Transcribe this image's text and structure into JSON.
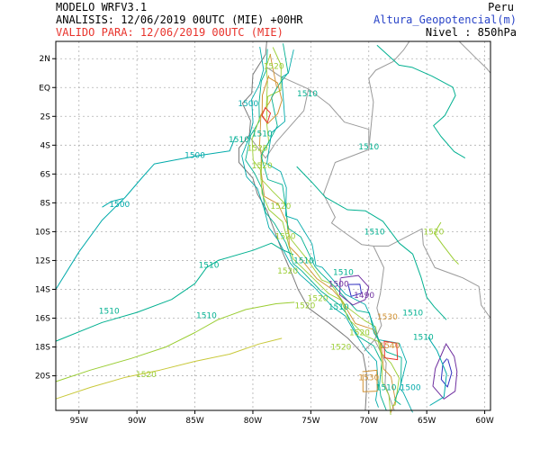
{
  "header": {
    "model": "MODELO WRFV3.1",
    "analysis": "ANALISIS: 12/06/2019 00UTC (MIE) +00HR",
    "valid": "VALIDO PARA: 12/06/2019 00UTC (MIE)",
    "region": "Peru",
    "variable": "Altura_Geopotencial(m)",
    "level": "Nivel : 850hPa"
  },
  "colors": {
    "text": "#000000",
    "valid_text": "#e8332c",
    "variable_text": "#2a44c8",
    "border": "#9a9a9a",
    "coast": "#7a7a7a",
    "grid": "#b0b0b0",
    "contour_1500": "#00aaaa",
    "contour_1510": "#00b090",
    "contour_1520": "#9acd32",
    "contour_high": "#d09030",
    "contour_purple": "#7030a0"
  },
  "axes": {
    "lon_labels": [
      "95W",
      "90W",
      "85W",
      "80W",
      "75W",
      "70W",
      "65W",
      "60W"
    ],
    "lat_labels": [
      "2N",
      "EQ",
      "2S",
      "4S",
      "6S",
      "8S",
      "10S",
      "12S",
      "14S",
      "16S",
      "18S",
      "20S"
    ]
  },
  "contour_labels": [
    {
      "text": "1520",
      "lon": -78.2,
      "lat": 1.3,
      "color": "#9acd32"
    },
    {
      "text": "1510",
      "lon": -75.3,
      "lat": -0.6,
      "color": "#00b090"
    },
    {
      "text": "1500",
      "lon": -80.4,
      "lat": -1.3,
      "color": "#00aaaa"
    },
    {
      "text": "1510",
      "lon": -79.2,
      "lat": -3.4,
      "color": "#00b090"
    },
    {
      "text": "1510",
      "lon": -81.2,
      "lat": -3.8,
      "color": "#00b090"
    },
    {
      "text": "1520",
      "lon": -79.6,
      "lat": -4.4,
      "color": "#9acd32"
    },
    {
      "text": "1510",
      "lon": -70.0,
      "lat": -4.3,
      "color": "#00b090"
    },
    {
      "text": "1500",
      "lon": -85.0,
      "lat": -4.9,
      "color": "#00aaaa"
    },
    {
      "text": "1520",
      "lon": -79.2,
      "lat": -5.6,
      "color": "#9acd32"
    },
    {
      "text": "1500",
      "lon": -91.5,
      "lat": -8.3,
      "color": "#00aaaa"
    },
    {
      "text": "1520",
      "lon": -77.6,
      "lat": -8.4,
      "color": "#9acd32"
    },
    {
      "text": "1510",
      "lon": -69.5,
      "lat": -10.2,
      "color": "#00b090"
    },
    {
      "text": "1520",
      "lon": -64.4,
      "lat": -10.2,
      "color": "#9acd32"
    },
    {
      "text": "1520",
      "lon": -77.2,
      "lat": -10.5,
      "color": "#9acd32"
    },
    {
      "text": "1510",
      "lon": -75.6,
      "lat": -12.2,
      "color": "#00b090"
    },
    {
      "text": "1520",
      "lon": -77.0,
      "lat": -12.9,
      "color": "#9acd32"
    },
    {
      "text": "1510",
      "lon": -83.8,
      "lat": -12.5,
      "color": "#00b090"
    },
    {
      "text": "1510",
      "lon": -72.2,
      "lat": -13.0,
      "color": "#00b090"
    },
    {
      "text": "1500",
      "lon": -72.6,
      "lat": -13.8,
      "color": "#7030a0"
    },
    {
      "text": "1520",
      "lon": -74.4,
      "lat": -14.8,
      "color": "#9acd32"
    },
    {
      "text": "1490",
      "lon": -70.4,
      "lat": -14.6,
      "color": "#7030a0"
    },
    {
      "text": "1510",
      "lon": -72.6,
      "lat": -15.4,
      "color": "#00b090"
    },
    {
      "text": "1520",
      "lon": -75.5,
      "lat": -15.3,
      "color": "#9acd32"
    },
    {
      "text": "1510",
      "lon": -84.0,
      "lat": -16.0,
      "color": "#00b090"
    },
    {
      "text": "1510",
      "lon": -92.4,
      "lat": -15.7,
      "color": "#00b090"
    },
    {
      "text": "1530",
      "lon": -68.4,
      "lat": -16.1,
      "color": "#d09030"
    },
    {
      "text": "1510",
      "lon": -66.2,
      "lat": -15.8,
      "color": "#00b090"
    },
    {
      "text": "1520",
      "lon": -70.8,
      "lat": -17.2,
      "color": "#9acd32"
    },
    {
      "text": "1510",
      "lon": -65.3,
      "lat": -17.5,
      "color": "#00b090"
    },
    {
      "text": "1540",
      "lon": -68.2,
      "lat": -18.1,
      "color": "#d09030"
    },
    {
      "text": "1520",
      "lon": -72.4,
      "lat": -18.2,
      "color": "#9acd32"
    },
    {
      "text": "1520",
      "lon": -89.2,
      "lat": -20.1,
      "color": "#9acd32"
    },
    {
      "text": "1530",
      "lon": -70.0,
      "lat": -20.3,
      "color": "#d09030"
    },
    {
      "text": "1510",
      "lon": -68.5,
      "lat": -21.0,
      "color": "#00b090"
    },
    {
      "text": "1500",
      "lon": -66.4,
      "lat": -21.0,
      "color": "#00aaaa"
    }
  ]
}
